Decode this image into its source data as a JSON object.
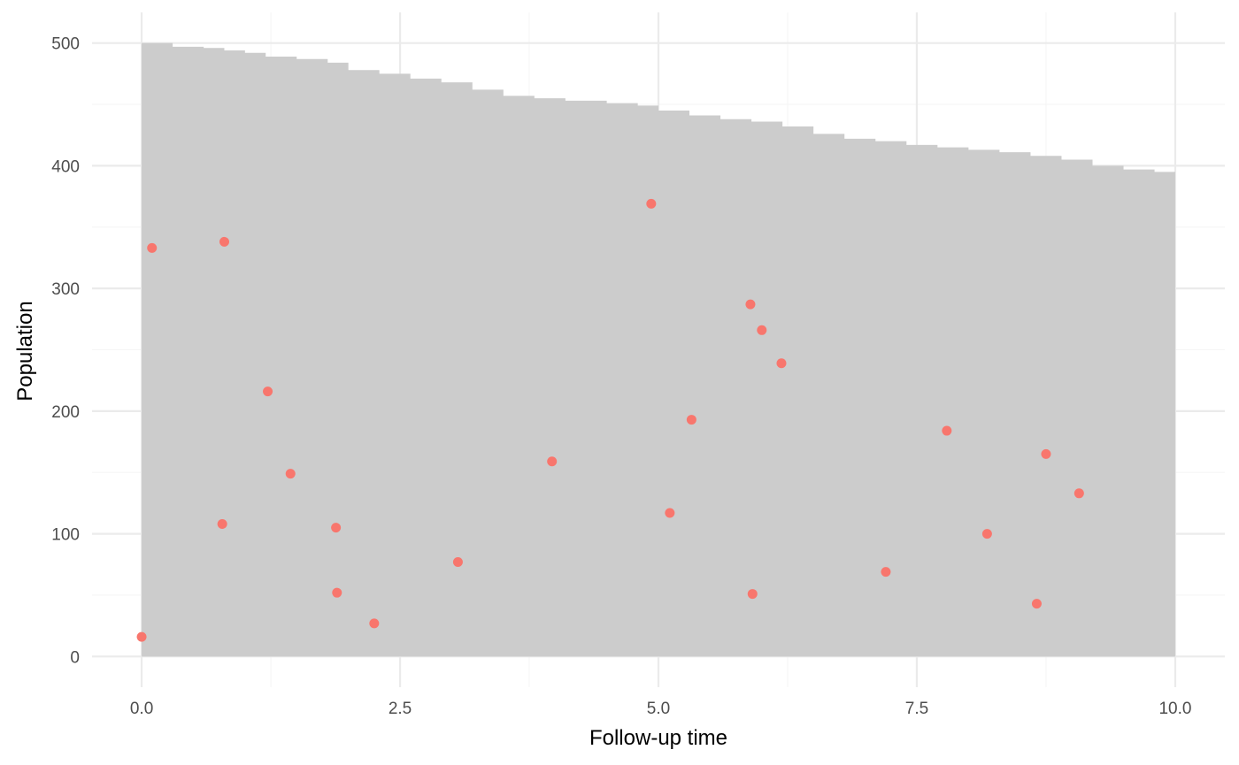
{
  "chart_data": {
    "type": "area",
    "title": "",
    "xlabel": "Follow-up time",
    "ylabel": "Population",
    "xlim": [
      -0.48,
      10.48
    ],
    "ylim": [
      -25,
      525
    ],
    "x_ticks": [
      0,
      2.5,
      5,
      7.5,
      10
    ],
    "x_tick_labels": [
      "0.0",
      "2.5",
      "5.0",
      "7.5",
      "10.0"
    ],
    "y_ticks": [
      0,
      100,
      200,
      300,
      400,
      500
    ],
    "y_tick_labels": [
      "0",
      "100",
      "200",
      "300",
      "400",
      "500"
    ],
    "grid": true,
    "legend": "none",
    "colors": {
      "area": "#cccccc",
      "points": "#f8766d",
      "grid_major": "#ebebeb",
      "grid_minor": "#f5f5f5"
    },
    "series": [
      {
        "type": "area",
        "x": [
          0,
          0.3,
          0.6,
          0.8,
          1.0,
          1.2,
          1.5,
          1.8,
          2.0,
          2.3,
          2.6,
          2.9,
          3.2,
          3.5,
          3.8,
          4.1,
          4.5,
          4.8,
          5.0,
          5.3,
          5.6,
          5.9,
          6.2,
          6.5,
          6.8,
          7.1,
          7.4,
          7.7,
          8.0,
          8.3,
          8.6,
          8.9,
          9.2,
          9.5,
          9.8,
          10.0
        ],
        "y": [
          500,
          497,
          496,
          494,
          492,
          489,
          487,
          484,
          478,
          475,
          471,
          468,
          462,
          457,
          455,
          453,
          451,
          449,
          445,
          441,
          438,
          436,
          432,
          426,
          422,
          420,
          417,
          415,
          413,
          411,
          408,
          405,
          400,
          397,
          395,
          393
        ]
      },
      {
        "type": "scatter",
        "points": [
          {
            "x": 0.0,
            "y": 16
          },
          {
            "x": 0.1,
            "y": 333
          },
          {
            "x": 0.78,
            "y": 108
          },
          {
            "x": 0.8,
            "y": 338
          },
          {
            "x": 1.22,
            "y": 216
          },
          {
            "x": 1.44,
            "y": 149
          },
          {
            "x": 1.88,
            "y": 105
          },
          {
            "x": 1.89,
            "y": 52
          },
          {
            "x": 2.25,
            "y": 27
          },
          {
            "x": 3.06,
            "y": 77
          },
          {
            "x": 3.97,
            "y": 159
          },
          {
            "x": 4.93,
            "y": 369
          },
          {
            "x": 5.11,
            "y": 117
          },
          {
            "x": 5.32,
            "y": 193
          },
          {
            "x": 5.89,
            "y": 287
          },
          {
            "x": 5.91,
            "y": 51
          },
          {
            "x": 6.0,
            "y": 266
          },
          {
            "x": 6.19,
            "y": 239
          },
          {
            "x": 7.2,
            "y": 69
          },
          {
            "x": 7.79,
            "y": 184
          },
          {
            "x": 8.18,
            "y": 100
          },
          {
            "x": 8.66,
            "y": 43
          },
          {
            "x": 8.75,
            "y": 165
          },
          {
            "x": 9.07,
            "y": 133
          }
        ]
      }
    ]
  }
}
